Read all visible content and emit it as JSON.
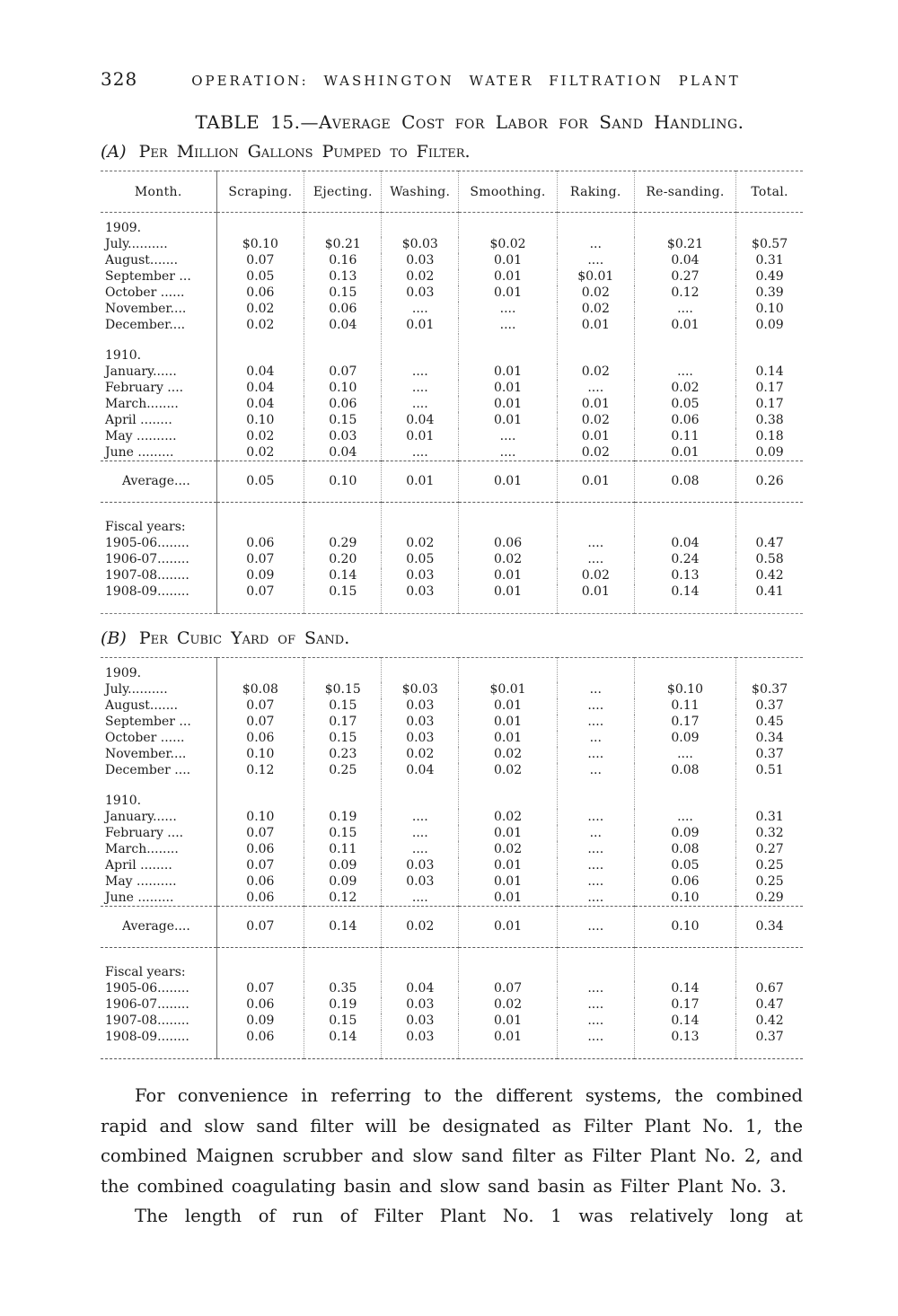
{
  "header": {
    "page_number": "328",
    "running_title": "OPERATION: WASHINGTON WATER FILTRATION PLANT"
  },
  "table": {
    "title": "TABLE 15.—Average Cost for Labor for Sand Handling.",
    "section_a_label": "(A)",
    "section_a_title": "Per Million Gallons Pumped to Filter.",
    "section_b_label": "(B)",
    "section_b_title": "Per Cubic Yard of Sand.",
    "columns": [
      "Month.",
      "Scraping.",
      "Ejecting.",
      "Washing.",
      "Smoothing.",
      "Raking.",
      "Re-sanding.",
      "Total."
    ]
  },
  "table_a": {
    "groups": [
      {
        "heading": "1909.",
        "rows": [
          {
            "label": "July..........",
            "cells": [
              "$0.10",
              "$0.21",
              "$0.03",
              "$0.02",
              "...",
              "$0.21",
              "$0.57"
            ]
          },
          {
            "label": "August.......",
            "cells": [
              "0.07",
              "0.16",
              "0.03",
              "0.01",
              "....",
              "0.04",
              "0.31"
            ]
          },
          {
            "label": "September ...",
            "cells": [
              "0.05",
              "0.13",
              "0.02",
              "0.01",
              "$0.01",
              "0.27",
              "0.49"
            ]
          },
          {
            "label": "October ......",
            "cells": [
              "0.06",
              "0.15",
              "0.03",
              "0.01",
              "0.02",
              "0.12",
              "0.39"
            ]
          },
          {
            "label": "November....",
            "cells": [
              "0.02",
              "0.06",
              "....",
              "....",
              "0.02",
              "....",
              "0.10"
            ]
          },
          {
            "label": "December....",
            "cells": [
              "0.02",
              "0.04",
              "0.01",
              "....",
              "0.01",
              "0.01",
              "0.09"
            ]
          }
        ]
      },
      {
        "heading": "1910.",
        "rows": [
          {
            "label": "January......",
            "cells": [
              "0.04",
              "0.07",
              "....",
              "0.01",
              "0.02",
              "....",
              "0.14"
            ]
          },
          {
            "label": "February ....",
            "cells": [
              "0.04",
              "0.10",
              "....",
              "0.01",
              "....",
              "0.02",
              "0.17"
            ]
          },
          {
            "label": "March........",
            "cells": [
              "0.04",
              "0.06",
              "....",
              "0.01",
              "0.01",
              "0.05",
              "0.17"
            ]
          },
          {
            "label": "April ........",
            "cells": [
              "0.10",
              "0.15",
              "0.04",
              "0.01",
              "0.02",
              "0.06",
              "0.38"
            ]
          },
          {
            "label": "May ..........",
            "cells": [
              "0.02",
              "0.03",
              "0.01",
              "....",
              "0.01",
              "0.11",
              "0.18"
            ]
          },
          {
            "label": "June .........",
            "cells": [
              "0.02",
              "0.04",
              "....",
              "....",
              "0.02",
              "0.01",
              "0.09"
            ]
          }
        ]
      }
    ],
    "average": {
      "label": "Average....",
      "cells": [
        "0.05",
        "0.10",
        "0.01",
        "0.01",
        "0.01",
        "0.08",
        "0.26"
      ]
    },
    "fiscal": {
      "heading": "Fiscal years:",
      "rows": [
        {
          "label": "1905-06........",
          "cells": [
            "0.06",
            "0.29",
            "0.02",
            "0.06",
            "....",
            "0.04",
            "0.47"
          ]
        },
        {
          "label": "1906-07........",
          "cells": [
            "0.07",
            "0.20",
            "0.05",
            "0.02",
            "....",
            "0.24",
            "0.58"
          ]
        },
        {
          "label": "1907-08........",
          "cells": [
            "0.09",
            "0.14",
            "0.03",
            "0.01",
            "0.02",
            "0.13",
            "0.42"
          ]
        },
        {
          "label": "1908-09........",
          "cells": [
            "0.07",
            "0.15",
            "0.03",
            "0.01",
            "0.01",
            "0.14",
            "0.41"
          ]
        }
      ]
    }
  },
  "table_b": {
    "groups": [
      {
        "heading": "1909.",
        "rows": [
          {
            "label": "July..........",
            "cells": [
              "$0.08",
              "$0.15",
              "$0.03",
              "$0.01",
              "...",
              "$0.10",
              "$0.37"
            ]
          },
          {
            "label": "August.......",
            "cells": [
              "0.07",
              "0.15",
              "0.03",
              "0.01",
              "....",
              "0.11",
              "0.37"
            ]
          },
          {
            "label": "September ...",
            "cells": [
              "0.07",
              "0.17",
              "0.03",
              "0.01",
              "....",
              "0.17",
              "0.45"
            ]
          },
          {
            "label": "October ......",
            "cells": [
              "0.06",
              "0.15",
              "0.03",
              "0.01",
              "...",
              "0.09",
              "0.34"
            ]
          },
          {
            "label": "November....",
            "cells": [
              "0.10",
              "0.23",
              "0.02",
              "0.02",
              "....",
              "....",
              "0.37"
            ]
          },
          {
            "label": "December ....",
            "cells": [
              "0.12",
              "0.25",
              "0.04",
              "0.02",
              "...",
              "0.08",
              "0.51"
            ]
          }
        ]
      },
      {
        "heading": "1910.",
        "rows": [
          {
            "label": "January......",
            "cells": [
              "0.10",
              "0.19",
              "....",
              "0.02",
              "....",
              "....",
              "0.31"
            ]
          },
          {
            "label": "February ....",
            "cells": [
              "0.07",
              "0.15",
              "....",
              "0.01",
              "...",
              "0.09",
              "0.32"
            ]
          },
          {
            "label": "March........",
            "cells": [
              "0.06",
              "0.11",
              "....",
              "0.02",
              "....",
              "0.08",
              "0.27"
            ]
          },
          {
            "label": "April ........",
            "cells": [
              "0.07",
              "0.09",
              "0.03",
              "0.01",
              "....",
              "0.05",
              "0.25"
            ]
          },
          {
            "label": "May ..........",
            "cells": [
              "0.06",
              "0.09",
              "0.03",
              "0.01",
              "....",
              "0.06",
              "0.25"
            ]
          },
          {
            "label": "June .........",
            "cells": [
              "0.06",
              "0.12",
              "....",
              "0.01",
              "....",
              "0.10",
              "0.29"
            ]
          }
        ]
      }
    ],
    "average": {
      "label": "Average....",
      "cells": [
        "0.07",
        "0.14",
        "0.02",
        "0.01",
        "....",
        "0.10",
        "0.34"
      ]
    },
    "fiscal": {
      "heading": "Fiscal years:",
      "rows": [
        {
          "label": "1905-06........",
          "cells": [
            "0.07",
            "0.35",
            "0.04",
            "0.07",
            "....",
            "0.14",
            "0.67"
          ]
        },
        {
          "label": "1906-07........",
          "cells": [
            "0.06",
            "0.19",
            "0.03",
            "0.02",
            "....",
            "0.17",
            "0.47"
          ]
        },
        {
          "label": "1907-08........",
          "cells": [
            "0.09",
            "0.15",
            "0.03",
            "0.01",
            "....",
            "0.14",
            "0.42"
          ]
        },
        {
          "label": "1908-09........",
          "cells": [
            "0.06",
            "0.14",
            "0.03",
            "0.01",
            "....",
            "0.13",
            "0.37"
          ]
        }
      ]
    }
  },
  "paragraphs": [
    "For convenience in referring to the different systems, the combined rapid and slow sand filter will be designated as Filter Plant No. 1, the combined Maignen scrubber and slow sand filter as Filter Plant No. 2, and the combined coagulating basin and slow sand basin as Filter Plant No. 3.",
    "The length of run of Filter Plant No. 1 was relatively long at"
  ],
  "colors": {
    "paper": "#ffffff",
    "ink": "#1b1b1b",
    "rule": "#666666"
  }
}
